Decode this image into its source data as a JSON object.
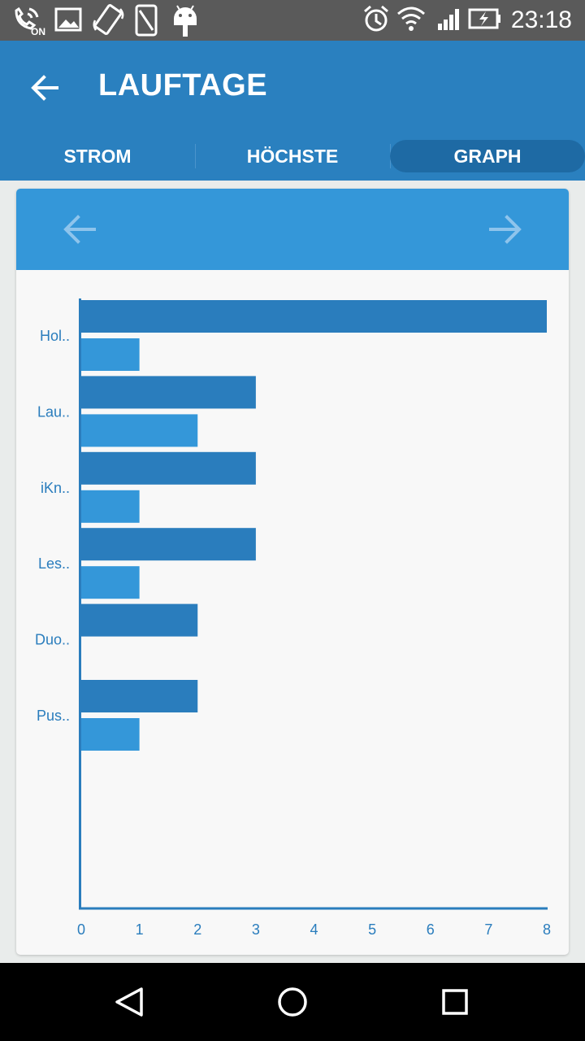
{
  "status_bar": {
    "time": "23:18",
    "nfc_badge": "ON",
    "left_icons": [
      "call-forward-icon",
      "image-icon",
      "screen-rotate-icon",
      "phone-icon",
      "android-icon"
    ],
    "right_icons": [
      "alarm-icon",
      "wifi-icon",
      "signal-icon",
      "battery-charging-icon"
    ]
  },
  "app_bar": {
    "title": "LAUFTAGE",
    "back_icon": "arrow-back-icon",
    "tabs": [
      {
        "label": "STROM",
        "selected": false
      },
      {
        "label": "HÖCHSTE",
        "selected": false
      },
      {
        "label": "GRAPH",
        "selected": true
      }
    ]
  },
  "card": {
    "prev_icon": "arrow-left-icon",
    "next_icon": "arrow-right-icon"
  },
  "chart_data": {
    "type": "bar",
    "orientation": "horizontal",
    "categories": [
      "Hol..",
      "Lau..",
      "iKn..",
      "Les..",
      "Duo..",
      "Pus.."
    ],
    "series": [
      {
        "color": "#2a7dbd",
        "values": [
          8,
          3,
          3,
          3,
          2,
          2
        ]
      },
      {
        "color": "#3497d9",
        "values": [
          1,
          2,
          1,
          1,
          0,
          1
        ]
      }
    ],
    "x_ticks": [
      "0",
      "1",
      "2",
      "3",
      "4",
      "5",
      "6",
      "7",
      "8"
    ],
    "xlim": [
      0,
      8
    ],
    "grid": false,
    "legend": "none"
  },
  "nav_bar": {
    "icons": [
      "back-triangle-icon",
      "home-circle-icon",
      "recents-square-icon"
    ]
  },
  "colors": {
    "status_bar": "#5a5a5a",
    "app_bar": "#2a80bf",
    "selected_tab": "#1e6aa4",
    "card_header": "#3497d9",
    "axis": "#2a7dbd",
    "label": "#2a7dbd"
  }
}
